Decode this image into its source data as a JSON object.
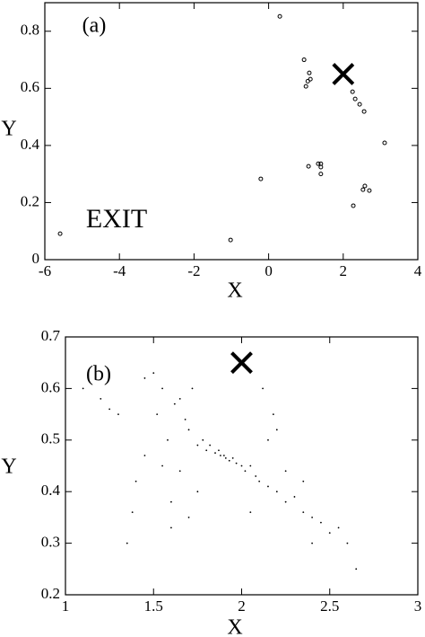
{
  "chart_data": [
    {
      "type": "scatter",
      "annotation": "(a)",
      "label": "EXIT",
      "xlabel": "X",
      "ylabel": "Y",
      "marker": "circle",
      "color": "#000000",
      "x": [
        0.3,
        0.95,
        1.09,
        1.12,
        1.05,
        1.0,
        2.25,
        2.32,
        2.44,
        2.56,
        3.11,
        1.07,
        1.33,
        1.4,
        1.4,
        1.4,
        -0.21,
        2.58,
        2.53,
        2.7,
        2.27,
        -1.02,
        -5.59
      ],
      "values": [
        0.852,
        0.7,
        0.654,
        0.632,
        0.625,
        0.607,
        0.588,
        0.563,
        0.544,
        0.519,
        0.409,
        0.327,
        0.336,
        0.336,
        0.324,
        0.3,
        0.283,
        0.258,
        0.245,
        0.242,
        0.189,
        0.069,
        0.091
      ],
      "target": {
        "x": 2,
        "y": 0.65
      },
      "xlim": [
        -6,
        4
      ],
      "ylim": [
        0,
        0.9
      ],
      "xticks": [
        -6,
        -4,
        -2,
        0,
        2,
        4
      ],
      "yticks": [
        0,
        0.2,
        0.4,
        0.6,
        0.8
      ]
    },
    {
      "type": "scatter",
      "annotation": "(b)",
      "xlabel": "X",
      "ylabel": "Y",
      "marker": "dot",
      "color": "#000000",
      "x": [
        1.1,
        1.2,
        1.25,
        1.3,
        1.35,
        1.38,
        1.4,
        1.45,
        1.5,
        1.52,
        1.55,
        1.58,
        1.6,
        1.62,
        1.65,
        1.68,
        1.7,
        1.72,
        1.75,
        1.78,
        1.8,
        1.82,
        1.85,
        1.87,
        1.88,
        1.9,
        1.91,
        1.93,
        1.95,
        1.97,
        2.0,
        2.02,
        2.05,
        2.08,
        2.1,
        2.12,
        2.15,
        2.18,
        2.2,
        2.25,
        2.3,
        2.35,
        2.4,
        2.45,
        2.5,
        2.55,
        2.6,
        2.65,
        1.45,
        1.55,
        1.65,
        1.75,
        2.05,
        2.15,
        2.25,
        2.35,
        1.6,
        1.7,
        2.2,
        2.4
      ],
      "values": [
        0.6,
        0.58,
        0.56,
        0.55,
        0.3,
        0.36,
        0.42,
        0.62,
        0.63,
        0.55,
        0.6,
        0.5,
        0.38,
        0.57,
        0.44,
        0.54,
        0.52,
        0.6,
        0.49,
        0.5,
        0.48,
        0.49,
        0.475,
        0.48,
        0.47,
        0.47,
        0.465,
        0.46,
        0.465,
        0.455,
        0.45,
        0.44,
        0.45,
        0.43,
        0.42,
        0.6,
        0.41,
        0.55,
        0.4,
        0.38,
        0.39,
        0.36,
        0.35,
        0.34,
        0.32,
        0.33,
        0.3,
        0.25,
        0.47,
        0.45,
        0.58,
        0.4,
        0.36,
        0.5,
        0.44,
        0.42,
        0.33,
        0.35,
        0.52,
        0.3
      ],
      "target": {
        "x": 2,
        "y": 0.65
      },
      "xlim": [
        1,
        3
      ],
      "ylim": [
        0.2,
        0.7
      ],
      "xticks": [
        1,
        1.5,
        2,
        2.5,
        3
      ],
      "yticks": [
        0.2,
        0.3,
        0.4,
        0.5,
        0.6,
        0.7
      ]
    }
  ]
}
